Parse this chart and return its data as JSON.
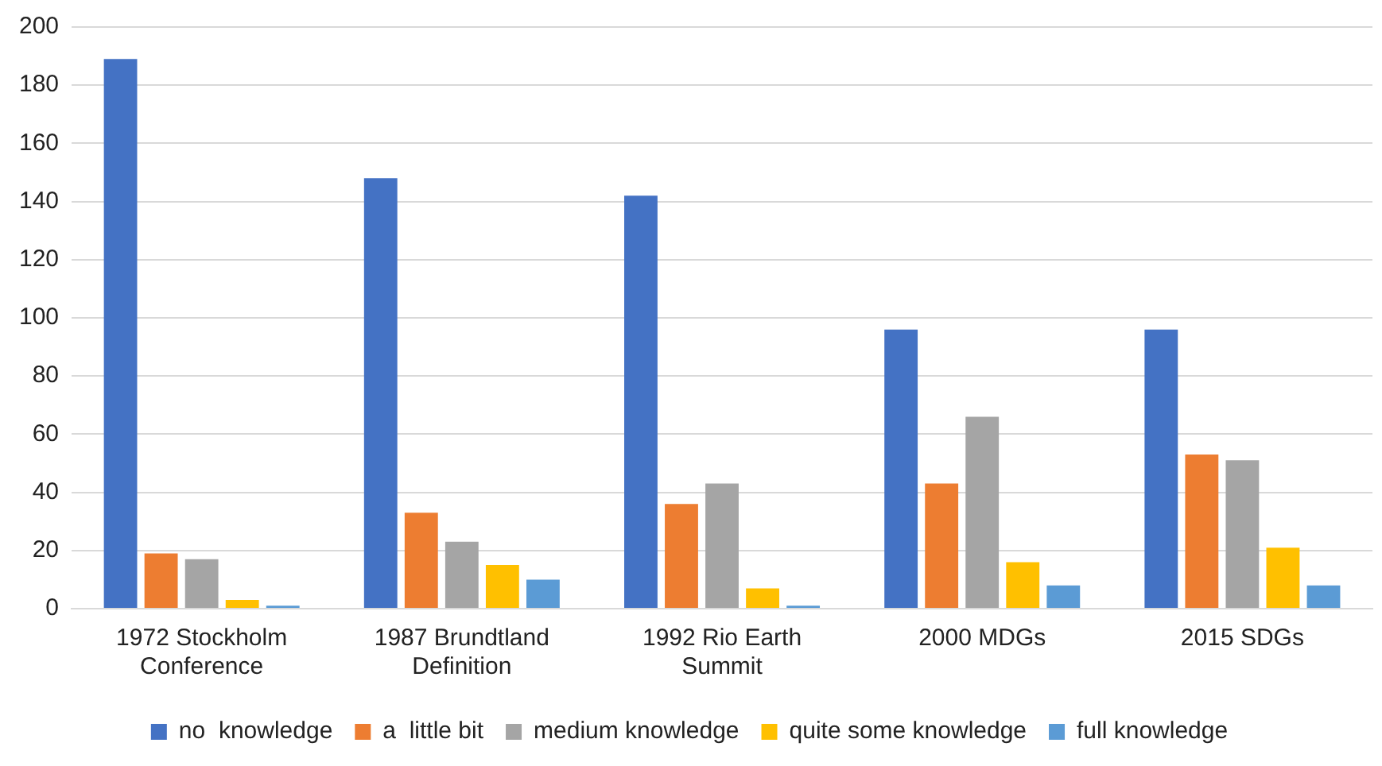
{
  "chart_data": {
    "type": "bar",
    "categories": [
      "1972 Stockholm Conference",
      "1987 Brundtland Definition",
      "1992 Rio Earth Summit",
      "2000 MDGs",
      "2015 SDGs"
    ],
    "series": [
      {
        "name": "no  knowledge",
        "color": "#4472c4",
        "values": [
          189,
          148,
          142,
          96,
          96
        ]
      },
      {
        "name": "a  little bit",
        "color": "#ed7d31",
        "values": [
          19,
          33,
          36,
          43,
          53
        ]
      },
      {
        "name": "medium knowledge",
        "color": "#a5a5a5",
        "values": [
          17,
          23,
          43,
          66,
          51
        ]
      },
      {
        "name": "quite some knowledge",
        "color": "#ffc000",
        "values": [
          3,
          15,
          7,
          16,
          21
        ]
      },
      {
        "name": "full knowledge",
        "color": "#5b9bd5",
        "values": [
          1,
          10,
          1,
          8,
          8
        ]
      }
    ],
    "ylim": [
      0,
      200
    ],
    "yticks": [
      0,
      20,
      40,
      60,
      80,
      100,
      120,
      140,
      160,
      180,
      200
    ],
    "grid": "y",
    "legend": "bottom"
  }
}
